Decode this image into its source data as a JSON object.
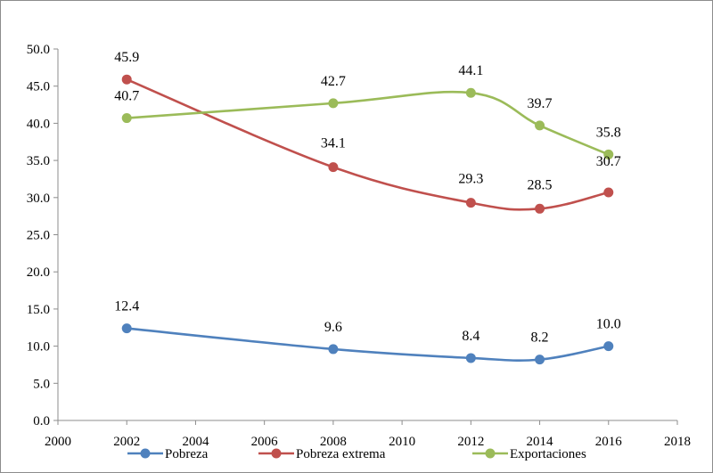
{
  "chart_data": {
    "type": "line",
    "title": "",
    "xlabel": "",
    "ylabel": "",
    "xlim": [
      2000,
      2018
    ],
    "ylim": [
      0,
      50
    ],
    "x_ticks": [
      "2000",
      "2002",
      "2004",
      "2006",
      "2008",
      "2010",
      "2012",
      "2014",
      "2016",
      "2018"
    ],
    "y_ticks": [
      "0.0",
      "5.0",
      "10.0",
      "15.0",
      "20.0",
      "25.0",
      "30.0",
      "35.0",
      "40.0",
      "45.0",
      "50.0"
    ],
    "grid": false,
    "legend_position": "bottom",
    "x": [
      2002,
      2008,
      2012,
      2014,
      2016
    ],
    "series": [
      {
        "name": "Pobreza",
        "color": "#4f81bd",
        "values": [
          12.4,
          9.6,
          8.4,
          8.2,
          10.0
        ],
        "labels": [
          "12.4",
          "9.6",
          "8.4",
          "8.2",
          "10.0"
        ]
      },
      {
        "name": "Pobreza extrema",
        "color": "#c0504d",
        "values": [
          45.9,
          34.1,
          29.3,
          28.5,
          30.7
        ],
        "labels": [
          "45.9",
          "34.1",
          "29.3",
          "28.5",
          "30.7"
        ]
      },
      {
        "name": "Exportaciones",
        "color": "#9bbb59",
        "values": [
          40.7,
          42.7,
          44.1,
          39.7,
          35.8
        ],
        "labels": [
          "40.7",
          "42.7",
          "44.1",
          "39.7",
          "35.8"
        ]
      }
    ]
  }
}
